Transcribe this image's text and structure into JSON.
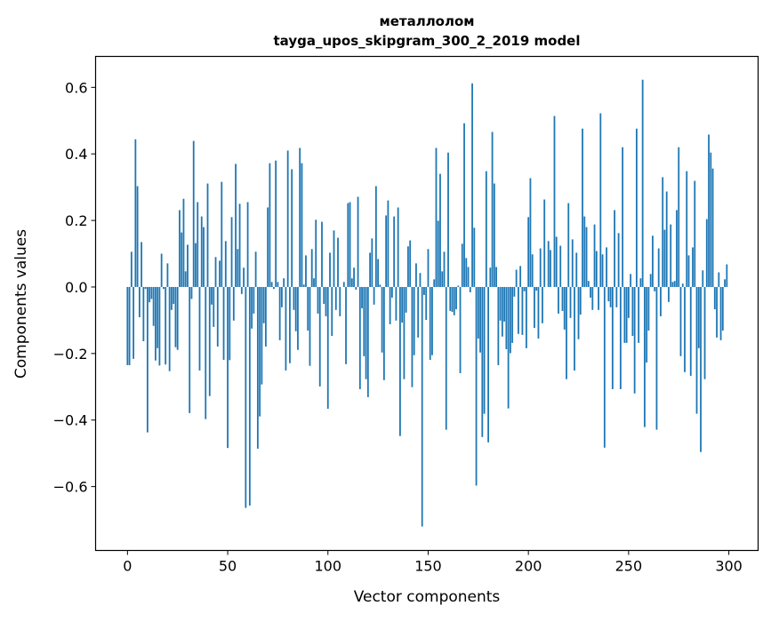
{
  "chart_data": {
    "type": "bar",
    "title_lines": [
      "металлолом",
      "tayga_upos_skipgram_300_2_2019 model"
    ],
    "xlabel": "Vector components",
    "ylabel": "Components values",
    "xlim": [
      -15.9,
      314.6
    ],
    "ylim": [
      -0.792,
      0.693
    ],
    "xticks": [
      0,
      50,
      100,
      150,
      200,
      250,
      300
    ],
    "xtick_labels": [
      "0",
      "50",
      "100",
      "150",
      "200",
      "250",
      "300"
    ],
    "yticks": [
      -0.6,
      -0.4,
      -0.2,
      0.0,
      0.2,
      0.4,
      0.6
    ],
    "ytick_labels": [
      "−0.6",
      "−0.4",
      "−0.2",
      "0.0",
      "0.2",
      "0.4",
      "0.6"
    ],
    "grid": false,
    "bar_color": "#1f77b4",
    "values": [
      -0.235,
      -0.235,
      0.106,
      -0.216,
      0.444,
      0.303,
      -0.091,
      0.135,
      -0.163,
      -0.006,
      -0.437,
      -0.046,
      -0.036,
      -0.117,
      -0.221,
      -0.184,
      -0.236,
      0.1,
      -0.006,
      -0.233,
      0.071,
      -0.253,
      -0.069,
      -0.051,
      -0.181,
      -0.189,
      0.231,
      0.164,
      0.265,
      0.047,
      0.127,
      -0.379,
      -0.036,
      0.439,
      0.132,
      0.255,
      -0.251,
      0.212,
      0.18,
      -0.397,
      0.311,
      -0.328,
      -0.053,
      -0.12,
      0.09,
      -0.179,
      0.079,
      0.316,
      -0.219,
      0.138,
      -0.484,
      -0.22,
      0.21,
      -0.101,
      0.37,
      0.114,
      0.25,
      -0.021,
      0.058,
      -0.664,
      0.255,
      -0.657,
      -0.125,
      -0.08,
      0.106,
      -0.486,
      -0.389,
      -0.293,
      -0.109,
      -0.179,
      0.239,
      0.372,
      0.015,
      -0.006,
      0.38,
      0.015,
      -0.16,
      -0.061,
      0.026,
      -0.251,
      0.41,
      -0.229,
      0.354,
      -0.069,
      -0.133,
      -0.189,
      0.418,
      0.372,
      0.007,
      0.095,
      -0.131,
      -0.237,
      0.114,
      0.026,
      0.202,
      -0.08,
      -0.299,
      0.196,
      -0.051,
      -0.088,
      -0.366,
      0.103,
      -0.147,
      0.17,
      -0.069,
      0.148,
      -0.088,
      0.0,
      0.015,
      -0.232,
      0.252,
      0.255,
      0.026,
      0.058,
      -0.008,
      0.271,
      -0.307,
      -0.064,
      -0.208,
      -0.277,
      -0.331,
      0.103,
      0.146,
      -0.053,
      0.303,
      0.084,
      0.007,
      -0.197,
      -0.28,
      0.215,
      0.26,
      -0.112,
      -0.032,
      0.212,
      -0.101,
      0.239,
      -0.448,
      -0.107,
      -0.277,
      -0.077,
      0.122,
      0.14,
      -0.301,
      -0.205,
      0.071,
      -0.152,
      0.042,
      -0.72,
      -0.024,
      -0.099,
      0.114,
      -0.219,
      -0.205,
      0.023,
      0.418,
      0.199,
      0.34,
      0.047,
      0.106,
      -0.429,
      0.404,
      -0.072,
      -0.075,
      -0.085,
      -0.067,
      0.004,
      -0.259,
      0.13,
      0.492,
      0.087,
      0.06,
      -0.016,
      0.612,
      0.178,
      -0.597,
      -0.155,
      -0.197,
      -0.451,
      -0.381,
      0.348,
      -0.467,
      0.058,
      0.466,
      0.311,
      0.06,
      -0.235,
      -0.101,
      -0.149,
      -0.104,
      -0.187,
      -0.365,
      -0.199,
      -0.168,
      -0.029,
      0.052,
      -0.141,
      0.063,
      -0.144,
      -0.013,
      -0.184,
      0.21,
      0.327,
      0.098,
      -0.123,
      -0.011,
      -0.155,
      0.116,
      -0.109,
      0.263,
      0.0,
      0.138,
      0.111,
      0.0,
      0.514,
      0.151,
      -0.08,
      0.124,
      -0.072,
      -0.128,
      -0.277,
      0.252,
      -0.093,
      0.143,
      -0.251,
      0.103,
      -0.157,
      -0.083,
      0.476,
      0.212,
      0.18,
      0.018,
      -0.032,
      -0.069,
      0.188,
      0.108,
      -0.069,
      0.522,
      0.098,
      -0.483,
      0.119,
      -0.043,
      -0.061,
      -0.307,
      0.231,
      -0.061,
      0.162,
      -0.307,
      0.42,
      -0.168,
      -0.168,
      -0.093,
      0.039,
      -0.147,
      -0.32,
      0.476,
      -0.168,
      0.026,
      0.623,
      -0.421,
      -0.227,
      -0.131,
      0.039,
      0.154,
      -0.013,
      -0.429,
      0.116,
      -0.088,
      0.33,
      0.172,
      0.287,
      -0.045,
      0.188,
      0.015,
      0.018,
      0.231,
      0.42,
      -0.208,
      0.01,
      -0.256,
      0.348,
      0.095,
      -0.267,
      0.119,
      0.319,
      -0.381,
      -0.184,
      -0.496,
      0.05,
      -0.277,
      0.204,
      0.458,
      0.404,
      0.356,
      -0.067,
      -0.152,
      0.044,
      -0.16,
      -0.131,
      0.023,
      0.068
    ]
  }
}
